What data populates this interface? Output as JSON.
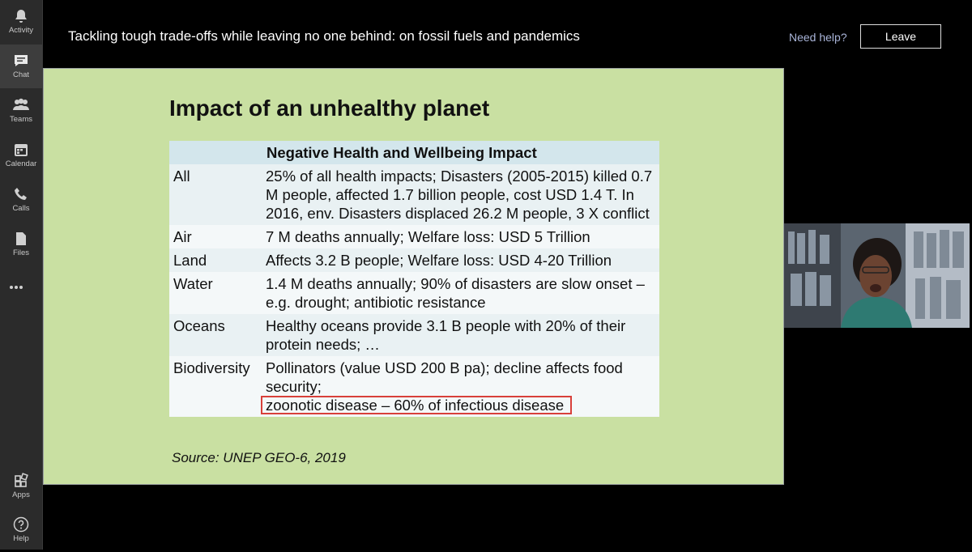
{
  "sidebar": {
    "items": [
      "Activity",
      "Chat",
      "Teams",
      "Calendar",
      "Calls",
      "Files"
    ],
    "bottom_items": [
      "Apps",
      "Help"
    ]
  },
  "header": {
    "title": "Tackling tough trade-offs while leaving no one behind: on fossil fuels and pandemics",
    "help": "Need help?",
    "leave": "Leave"
  },
  "slide": {
    "title": "Impact of an unhealthy planet",
    "table": {
      "header": "Negative Health and Wellbeing Impact",
      "rows": [
        [
          "All",
          "25% of all health impacts; Disasters (2005-2015) killed 0.7 M people, affected 1.7 billion people, cost USD 1.4 T. In 2016, env. Disasters displaced 26.2 M people, 3 X conflict"
        ],
        [
          "Air",
          "7 M deaths annually; Welfare loss: USD 5 Trillion"
        ],
        [
          "Land",
          "Affects 3.2 B people; Welfare loss: USD 4-20 Trillion"
        ],
        [
          "Water",
          "1.4 M deaths annually; 90% of disasters are slow onset – e.g. drought; antibiotic resistance"
        ],
        [
          "Oceans",
          "Healthy oceans provide 3.1 B people with 20% of their protein needs; …"
        ],
        [
          "Biodiversity",
          "Pollinators (value USD 200 B pa); decline affects food security;",
          "zoonotic disease – 60% of infectious disease"
        ]
      ]
    },
    "source": "Source: UNEP GEO-6, 2019"
  }
}
